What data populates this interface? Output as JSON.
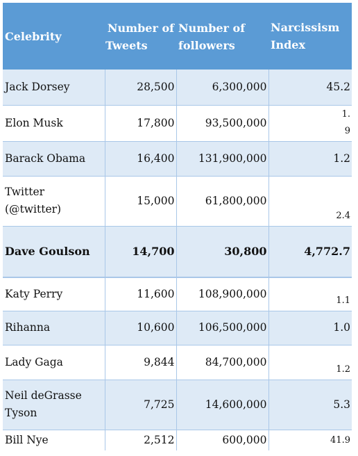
{
  "table": {
    "headers": {
      "celebrity": "Celebrity",
      "tweets_line1": "Number of",
      "tweets_line2": "Tweets",
      "followers_line1": "Number of",
      "followers_line2": "followers",
      "index_line1": "Narcissism",
      "index_line2": "Index"
    },
    "rows": [
      {
        "name": "Jack Dorsey",
        "tweets": "28,500",
        "followers": "6,300,000",
        "index": "45.2"
      },
      {
        "name": "Elon Musk",
        "tweets": "17,800",
        "followers": "93,500,000",
        "index": "1.9"
      },
      {
        "name": "Barack Obama",
        "tweets": "16,400",
        "followers": "131,900,000",
        "index": "1.2"
      },
      {
        "name": "Twitter (@twitter)",
        "tweets": "15,000",
        "followers": "61,800,000",
        "index": "2.4"
      },
      {
        "name": "Dave Goulson",
        "tweets": "14,700",
        "followers": "30,800",
        "index": "4,772.7"
      },
      {
        "name": "Katy Perry",
        "tweets": "11,600",
        "followers": "108,900,000",
        "index": "1.1"
      },
      {
        "name": "Rihanna",
        "tweets": "10,600",
        "followers": "106,500,000",
        "index": "1.0"
      },
      {
        "name": "Lady Gaga",
        "tweets": "9,844",
        "followers": "84,700,000",
        "index": "1.2"
      },
      {
        "name": "Neil deGrasse Tyson",
        "tweets": "7,725",
        "followers": "14,600,000",
        "index": "5.3"
      },
      {
        "name": "Bill Nye",
        "tweets": "2,512",
        "followers": "600,000",
        "index": "41.9"
      }
    ],
    "elon_index_part1": "1.",
    "elon_index_part2": "9",
    "twitter_name_line1": "Twitter",
    "twitter_name_line2": "(@twitter)",
    "neil_name_line1": "Neil deGrasse",
    "neil_name_line2": "Tyson"
  }
}
